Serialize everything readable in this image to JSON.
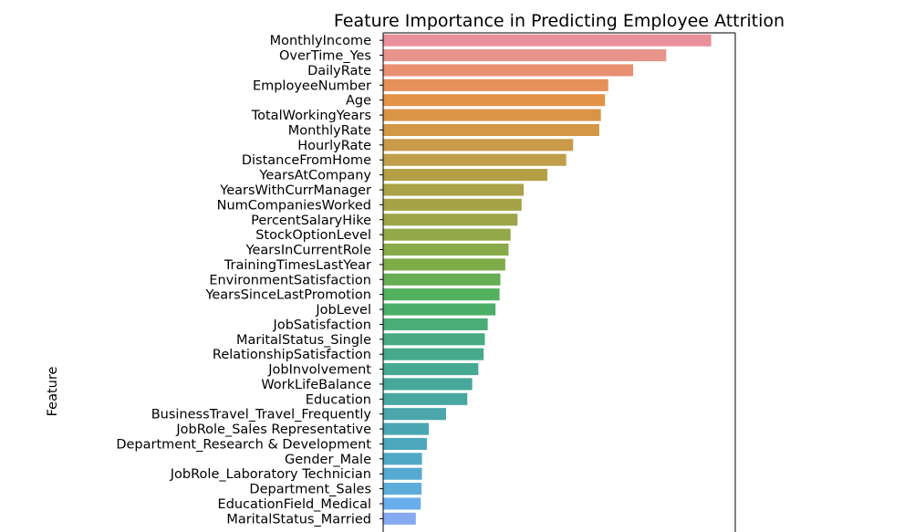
{
  "chart_data": {
    "type": "bar",
    "orientation": "horizontal",
    "title": "Feature Importance in Predicting Employee Attrition",
    "ylabel": "Feature",
    "xlabel": "",
    "xlim": [
      0,
      0.0862
    ],
    "grid": false,
    "legend": "none",
    "categories": [
      "MonthlyIncome",
      "OverTime_Yes",
      "DailyRate",
      "EmployeeNumber",
      "Age",
      "TotalWorkingYears",
      "MonthlyRate",
      "HourlyRate",
      "DistanceFromHome",
      "YearsAtCompany",
      "YearsWithCurrManager",
      "NumCompaniesWorked",
      "PercentSalaryHike",
      "StockOptionLevel",
      "YearsInCurrentRole",
      "TrainingTimesLastYear",
      "EnvironmentSatisfaction",
      "YearsSinceLastPromotion",
      "JobLevel",
      "JobSatisfaction",
      "MaritalStatus_Single",
      "RelationshipSatisfaction",
      "JobInvolvement",
      "WorkLifeBalance",
      "Education",
      "BusinessTravel_Travel_Frequently",
      "JobRole_Sales Representative",
      "Department_Research & Development",
      "Gender_Male",
      "JobRole_Laboratory Technician",
      "Department_Sales",
      "EducationField_Medical",
      "MaritalStatus_Married"
    ],
    "values": [
      0.0803,
      0.0693,
      0.0612,
      0.0551,
      0.0543,
      0.0533,
      0.0529,
      0.0465,
      0.0448,
      0.0402,
      0.0344,
      0.0339,
      0.0329,
      0.0312,
      0.0307,
      0.0299,
      0.0287,
      0.0285,
      0.0275,
      0.0256,
      0.0249,
      0.0246,
      0.0233,
      0.0218,
      0.0206,
      0.0154,
      0.0112,
      0.0107,
      0.0095,
      0.0095,
      0.0094,
      0.0092,
      0.008
    ],
    "colors": [
      "#e8909c",
      "#e8948a",
      "#e98f72",
      "#e6905a",
      "#e29347",
      "#d99446",
      "#d29747",
      "#c99b48",
      "#c09e4a",
      "#b49f47",
      "#aaa247",
      "#a4a447",
      "#9ca649",
      "#93a84a",
      "#89aa48",
      "#7fab49",
      "#66ad53",
      "#53b05e",
      "#4cae69",
      "#4aad78",
      "#48ab82",
      "#46aa8a",
      "#46a993",
      "#47a89a",
      "#48a7a0",
      "#4aa6aa",
      "#4ba6b3",
      "#4da7bc",
      "#50a8c6",
      "#56aad1",
      "#5daddb",
      "#6aadec",
      "#86aaf0"
    ]
  }
}
